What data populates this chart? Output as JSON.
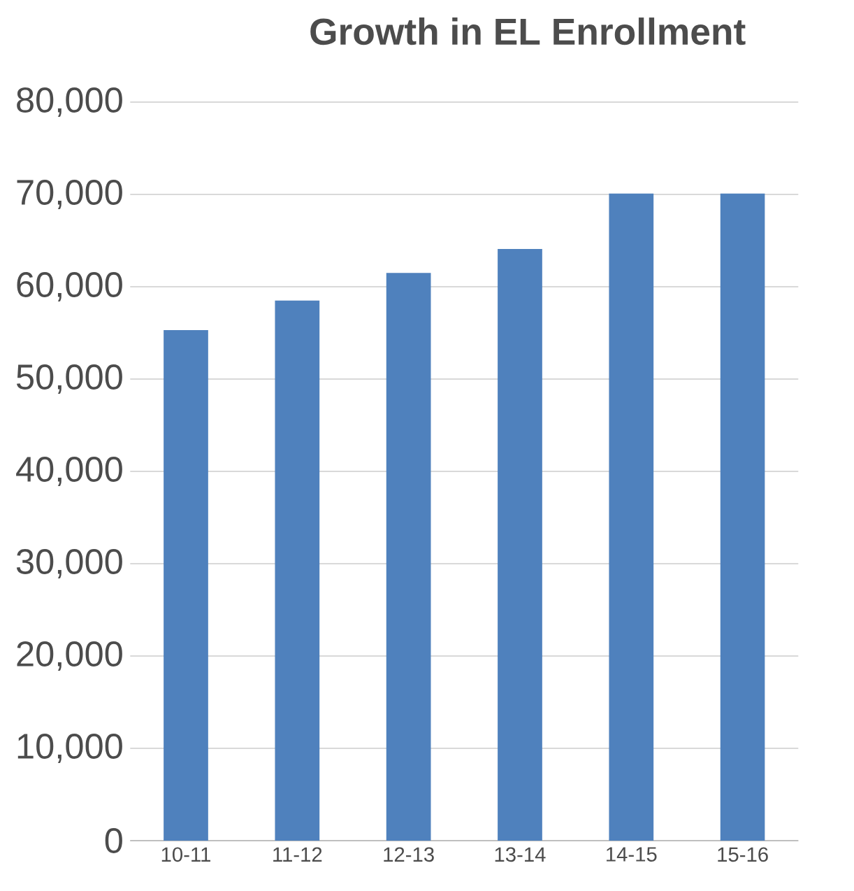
{
  "chart_data": {
    "type": "bar",
    "title": "Growth in EL Enrollment",
    "categories": [
      "10-11",
      "11-12",
      "12-13",
      "13-14",
      "14-15",
      "15-16"
    ],
    "values": [
      55300,
      58500,
      61500,
      64100,
      70100,
      70100
    ],
    "color": "#4f81bd",
    "ylim": [
      0,
      80000
    ],
    "yticks": [
      {
        "value": 0,
        "label": "0"
      },
      {
        "value": 10000,
        "label": "10,000"
      },
      {
        "value": 20000,
        "label": "20,000"
      },
      {
        "value": 30000,
        "label": "30,000"
      },
      {
        "value": 40000,
        "label": "40,000"
      },
      {
        "value": 50000,
        "label": "50,000"
      },
      {
        "value": 60000,
        "label": "60,000"
      },
      {
        "value": 70000,
        "label": "70,000"
      },
      {
        "value": 80000,
        "label": "80,000"
      }
    ],
    "grid": "y"
  }
}
